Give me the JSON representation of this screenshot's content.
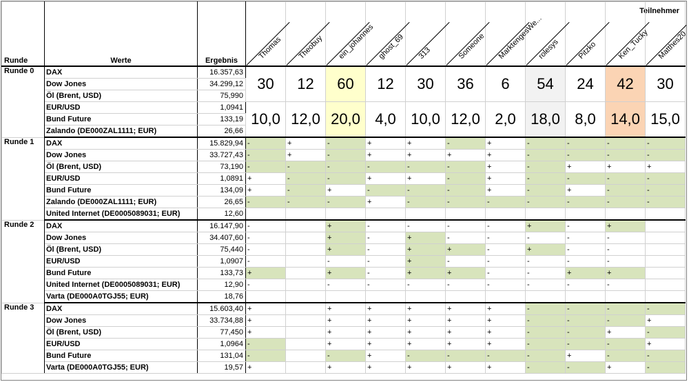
{
  "headers": {
    "runde": "Runde",
    "werte": "Werte",
    "ergebnis": "Ergebnis",
    "teilnehmer": "Teilnehmer"
  },
  "participants": [
    "Thomas",
    "Theobuy",
    "ein_johannes",
    "ghost_69",
    "313",
    "Someone",
    "MarktengesWe...",
    "rolesys",
    "Pitzko",
    "Ken_Tucky",
    "Matthes20"
  ],
  "round0": {
    "label": "Runde 0",
    "rows": [
      {
        "wert": "DAX",
        "erg": "16.357,63"
      },
      {
        "wert": "Dow Jones",
        "erg": "34.299,12"
      },
      {
        "wert": "Öl (Brent, USD)",
        "erg": "75,990"
      },
      {
        "wert": "EUR/USD",
        "erg": "1,0941"
      },
      {
        "wert": "Bund Future",
        "erg": "133,19"
      },
      {
        "wert": "Zalando (DE000ZAL1111; EUR)",
        "erg": "26,66"
      }
    ],
    "scores": [
      "30",
      "12",
      "60",
      "12",
      "30",
      "36",
      "6",
      "54",
      "24",
      "42",
      "30"
    ],
    "averages": [
      "10,0",
      "12,0",
      "20,0",
      "4,0",
      "10,0",
      "12,0",
      "2,0",
      "18,0",
      "8,0",
      "14,0",
      "15,0"
    ],
    "highlight": {
      "ein_johannes": "#ffffcc",
      "rolesys": "#f2f2f2",
      "Ken_Tucky": "#fbd4b4"
    }
  },
  "rounds": [
    {
      "label": "Runde 1",
      "rows": [
        {
          "wert": "DAX",
          "erg": "15.829,94",
          "picks": [
            "-",
            "+",
            "-",
            "+",
            "+",
            "-",
            "+",
            "-",
            "-",
            "-",
            "-"
          ]
        },
        {
          "wert": "Dow Jones",
          "erg": "33.727,43",
          "picks": [
            "-",
            "+",
            "-",
            "+",
            "+",
            "+",
            "+",
            "-",
            "-",
            "-",
            "-"
          ]
        },
        {
          "wert": "Öl (Brent, USD)",
          "erg": "73,190",
          "picks": [
            "-",
            "-",
            "-",
            "-",
            "-",
            "-",
            "+",
            "-",
            "+",
            "+",
            "+"
          ]
        },
        {
          "wert": "EUR/USD",
          "erg": "1,0891",
          "picks": [
            "+",
            "-",
            "-",
            "+",
            "+",
            "-",
            "+",
            "-",
            "-",
            "-",
            "-"
          ]
        },
        {
          "wert": "Bund Future",
          "erg": "134,09",
          "picks": [
            "+",
            "-",
            "+",
            "-",
            "-",
            "-",
            "+",
            "-",
            "+",
            "-",
            "-"
          ]
        },
        {
          "wert": "Zalando (DE000ZAL1111; EUR)",
          "erg": "26,65",
          "picks": [
            "-",
            "-",
            "-",
            "+",
            "-",
            "-",
            "-",
            "-",
            "-",
            "-",
            "-"
          ]
        },
        {
          "wert": "United Internet (DE0005089031; EUR)",
          "erg": "12,60",
          "picks": [
            "",
            "",
            "",
            "",
            "",
            "",
            "",
            "",
            "",
            "",
            ""
          ]
        }
      ]
    },
    {
      "label": "Runde 2",
      "rows": [
        {
          "wert": "DAX",
          "erg": "16.147,90",
          "picks": [
            "-",
            "",
            "+",
            "-",
            "-",
            "-",
            "-",
            "+",
            "-",
            "+",
            ""
          ]
        },
        {
          "wert": "Dow Jones",
          "erg": "34.407,60",
          "picks": [
            "-",
            "",
            "+",
            "-",
            "+",
            "-",
            "-",
            "-",
            "-",
            "-",
            ""
          ]
        },
        {
          "wert": "Öl (Brent, USD)",
          "erg": "75,440",
          "picks": [
            "-",
            "",
            "+",
            "-",
            "+",
            "+",
            "-",
            "+",
            "-",
            "-",
            ""
          ]
        },
        {
          "wert": "EUR/USD",
          "erg": "1,0907",
          "picks": [
            "-",
            "",
            "-",
            "-",
            "+",
            "-",
            "-",
            "-",
            "-",
            "-",
            ""
          ]
        },
        {
          "wert": "Bund Future",
          "erg": "133,73",
          "picks": [
            "+",
            "",
            "+",
            "-",
            "+",
            "+",
            "-",
            "-",
            "+",
            "+",
            ""
          ]
        },
        {
          "wert": "United Internet (DE0005089031; EUR)",
          "erg": "12,90",
          "picks": [
            "-",
            "",
            "-",
            "-",
            "-",
            "-",
            "-",
            "-",
            "-",
            "-",
            ""
          ]
        },
        {
          "wert": "Varta (DE000A0TGJ55; EUR)",
          "erg": "18,76",
          "picks": [
            "",
            "",
            "",
            "",
            "",
            "",
            "",
            "",
            "",
            "",
            ""
          ]
        }
      ]
    },
    {
      "label": "Runde 3",
      "rows": [
        {
          "wert": "DAX",
          "erg": "15.603,40",
          "picks": [
            "+",
            "",
            "+",
            "+",
            "+",
            "+",
            "+",
            "-",
            "-",
            "-",
            "-"
          ]
        },
        {
          "wert": "Dow Jones",
          "erg": "33.734,88",
          "picks": [
            "+",
            "",
            "+",
            "+",
            "+",
            "+",
            "+",
            "-",
            "-",
            "-",
            "+"
          ]
        },
        {
          "wert": "Öl (Brent, USD)",
          "erg": "77,450",
          "picks": [
            "+",
            "",
            "+",
            "+",
            "+",
            "+",
            "+",
            "-",
            "-",
            "+",
            "-"
          ]
        },
        {
          "wert": "EUR/USD",
          "erg": "1,0964",
          "picks": [
            "-",
            "",
            "+",
            "+",
            "+",
            "+",
            "+",
            "-",
            "-",
            "-",
            "+"
          ]
        },
        {
          "wert": "Bund Future",
          "erg": "131,04",
          "picks": [
            "-",
            "",
            "-",
            "+",
            "-",
            "-",
            "-",
            "-",
            "+",
            "-",
            "-"
          ]
        },
        {
          "wert": "Varta (DE000A0TGJ55; EUR)",
          "erg": "19,57",
          "picks": [
            "+",
            "",
            "+",
            "+",
            "+",
            "+",
            "+",
            "-",
            "-",
            "+",
            "-"
          ]
        }
      ]
    }
  ],
  "colors": {
    "correct_fill": "#d8e4bc",
    "border": "#d0d0d0"
  }
}
